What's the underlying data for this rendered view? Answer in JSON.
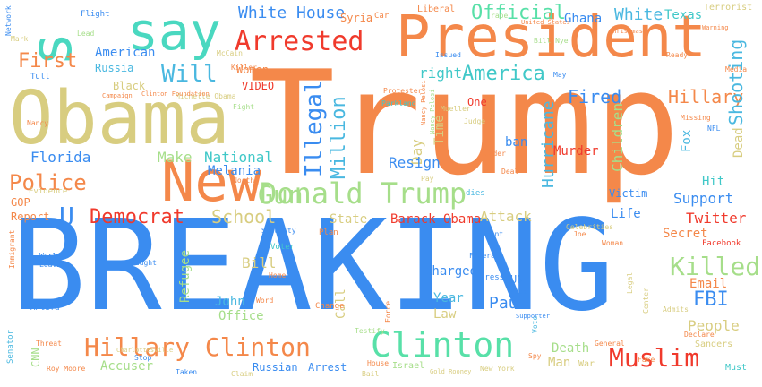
{
  "words": [
    {
      "text": "BREAKING",
      "color": "#3a8cf0"
    },
    {
      "text": "Trump",
      "color": "#f4884a"
    },
    {
      "text": "Obama",
      "color": "#d8cd80"
    },
    {
      "text": "President",
      "color": "#f4884a"
    },
    {
      "text": "say",
      "color": "#4ad8c0"
    },
    {
      "text": "s",
      "color": "#4ad8c0"
    },
    {
      "text": "New",
      "color": "#f4884a"
    },
    {
      "text": "Donald Trump",
      "color": "#a6de8a"
    },
    {
      "text": "Hillary Clinton",
      "color": "#f4884a"
    },
    {
      "text": "Clinton",
      "color": "#58e0a8"
    },
    {
      "text": "Arrested",
      "color": "#f03a2c"
    },
    {
      "text": "Muslim",
      "color": "#f03a2c"
    },
    {
      "text": "White House",
      "color": "#3a8cf0"
    },
    {
      "text": "Official",
      "color": "#58e0a8"
    },
    {
      "text": "Will",
      "color": "#4ab8e0"
    },
    {
      "text": "America",
      "color": "#40c8c8"
    },
    {
      "text": "Fired",
      "color": "#3a8cf0"
    },
    {
      "text": "Hillary",
      "color": "#f4884a"
    },
    {
      "text": "Shooting",
      "color": "#4ab8e0"
    },
    {
      "text": "Killed",
      "color": "#a6de8a"
    },
    {
      "text": "Illegal",
      "color": "#3a8cf0"
    },
    {
      "text": "Million",
      "color": "#4ab8e0"
    },
    {
      "text": "Gun",
      "color": "#a6de8a"
    },
    {
      "text": "School",
      "color": "#d8cd80"
    },
    {
      "text": "Democrat",
      "color": "#f03a2c"
    },
    {
      "text": "Police",
      "color": "#f4884a"
    },
    {
      "text": "First",
      "color": "#f4884a"
    },
    {
      "text": "Florida",
      "color": "#3a8cf0"
    },
    {
      "text": "Make",
      "color": "#a6de8a"
    },
    {
      "text": "National",
      "color": "#40c8c8"
    },
    {
      "text": "Melania",
      "color": "#3a8cf0"
    },
    {
      "text": "Day",
      "color": "#d8cd80"
    },
    {
      "text": "Time",
      "color": "#d8cd80"
    },
    {
      "text": "right",
      "color": "#40c8c8"
    },
    {
      "text": "American",
      "color": "#3a8cf0"
    },
    {
      "text": "Russia",
      "color": "#4ab8e0"
    },
    {
      "text": "Women",
      "color": "#f4884a"
    },
    {
      "text": "Black",
      "color": "#d8cd80"
    },
    {
      "text": "VIDEO",
      "color": "#f03a2c"
    },
    {
      "text": "One",
      "color": "#f03a2c"
    },
    {
      "text": "Hurricane",
      "color": "#4ab8e0"
    },
    {
      "text": "Children",
      "color": "#a6de8a"
    },
    {
      "text": "Resign",
      "color": "#3a8cf0"
    },
    {
      "text": "Murder",
      "color": "#f03a2c"
    },
    {
      "text": "ban",
      "color": "#3a8cf0"
    },
    {
      "text": "Hit",
      "color": "#40c8c8"
    },
    {
      "text": "Support",
      "color": "#3a8cf0"
    },
    {
      "text": "Dead",
      "color": "#d8cd80"
    },
    {
      "text": "Fox",
      "color": "#4ab8e0"
    },
    {
      "text": "Victim",
      "color": "#3a8cf0"
    },
    {
      "text": "Twitter",
      "color": "#f03a2c"
    },
    {
      "text": "Secret",
      "color": "#f4884a"
    },
    {
      "text": "Life",
      "color": "#3a8cf0"
    },
    {
      "text": "Barack Obama",
      "color": "#f03a2c"
    },
    {
      "text": "Attack",
      "color": "#d8cd80"
    },
    {
      "text": "State",
      "color": "#d8cd80"
    },
    {
      "text": "Report",
      "color": "#f4884a"
    },
    {
      "text": "GOP",
      "color": "#f4884a"
    },
    {
      "text": "U",
      "color": "#3a8cf0"
    },
    {
      "text": "Refugee",
      "color": "#a6de8a"
    },
    {
      "text": "Bill",
      "color": "#d8cd80"
    },
    {
      "text": "John",
      "color": "#4ab8e0"
    },
    {
      "text": "Office",
      "color": "#a6de8a"
    },
    {
      "text": "Call",
      "color": "#d8cd80"
    },
    {
      "text": "charged",
      "color": "#3a8cf0"
    },
    {
      "text": "Year",
      "color": "#4ab8e0"
    },
    {
      "text": "Law",
      "color": "#d8cd80"
    },
    {
      "text": "Paul",
      "color": "#3a8cf0"
    },
    {
      "text": "UN",
      "color": "#3a8cf0"
    },
    {
      "text": "FBI",
      "color": "#3a8cf0"
    },
    {
      "text": "Email",
      "color": "#f4884a"
    },
    {
      "text": "People",
      "color": "#d8cd80"
    },
    {
      "text": "Death",
      "color": "#a6de8a"
    },
    {
      "text": "Man",
      "color": "#d8cd80"
    },
    {
      "text": "Accuser",
      "color": "#a6de8a"
    },
    {
      "text": "Russian",
      "color": "#3a8cf0"
    },
    {
      "text": "Arrest",
      "color": "#3a8cf0"
    },
    {
      "text": "White",
      "color": "#4ab8e0"
    },
    {
      "text": "Texas",
      "color": "#40c8c8"
    },
    {
      "text": "Ghana",
      "color": "#3a8cf0"
    },
    {
      "text": "Terrorist",
      "color": "#d8cd80"
    },
    {
      "text": "CNN",
      "color": "#a6de8a"
    },
    {
      "text": "Roy Moore",
      "color": "#f4884a"
    },
    {
      "text": "Israel",
      "color": "#a6de8a"
    },
    {
      "text": "Sanders",
      "color": "#d8cd80"
    },
    {
      "text": "Must",
      "color": "#40c8c8"
    },
    {
      "text": "War",
      "color": "#d8cd80"
    },
    {
      "text": "Syria",
      "color": "#f4884a"
    },
    {
      "text": "Liberal",
      "color": "#f4884a"
    },
    {
      "text": "Evidence",
      "color": "#d8cd80"
    },
    {
      "text": "Plan",
      "color": "#f4884a"
    },
    {
      "text": "Voter",
      "color": "#40c8c8"
    },
    {
      "text": "Flight",
      "color": "#3a8cf0"
    },
    {
      "text": "Michelle Obama",
      "color": "#d8cd80"
    },
    {
      "text": "Clinton Foundation",
      "color": "#f4884a"
    },
    {
      "text": "Parkland",
      "color": "#40c8c8"
    },
    {
      "text": "Celebrities",
      "color": "#d8cd80"
    },
    {
      "text": "Senator",
      "color": "#4ab8e0"
    },
    {
      "text": "Immigrant",
      "color": "#f4884a"
    },
    {
      "text": "Antifa",
      "color": "#3a8cf0"
    },
    {
      "text": "Bill Nye",
      "color": "#a6de8a"
    },
    {
      "text": "Killer",
      "color": "#f4884a"
    },
    {
      "text": "Judge",
      "color": "#d8cd80"
    },
    {
      "text": "Missing",
      "color": "#f4884a"
    },
    {
      "text": "NFL",
      "color": "#3a8cf0"
    },
    {
      "text": "Facebook",
      "color": "#f03a2c"
    },
    {
      "text": "Federal",
      "color": "#3a8cf0"
    },
    {
      "text": "Agent",
      "color": "#3a8cf0"
    },
    {
      "text": "North",
      "color": "#f4884a"
    },
    {
      "text": "Press",
      "color": "#3a8cf0"
    },
    {
      "text": "Mueller",
      "color": "#d8cd80"
    },
    {
      "text": "Nancy Pelosi",
      "color": "#a6de8a"
    },
    {
      "text": "Leader",
      "color": "#f4884a"
    },
    {
      "text": "Network",
      "color": "#3a8cf0"
    },
    {
      "text": "Fight",
      "color": "#a6de8a"
    },
    {
      "text": "McCain",
      "color": "#d8cd80"
    },
    {
      "text": "Campaign",
      "color": "#f4884a"
    },
    {
      "text": "Nancy",
      "color": "#f4884a"
    },
    {
      "text": "Word",
      "color": "#f4884a"
    },
    {
      "text": "Change",
      "color": "#f4884a"
    },
    {
      "text": "Stop",
      "color": "#3a8cf0"
    },
    {
      "text": "Taken",
      "color": "#3a8cf0"
    },
    {
      "text": "Claim",
      "color": "#d8cd80"
    },
    {
      "text": "Bail",
      "color": "#d8cd80"
    },
    {
      "text": "Made",
      "color": "#3a8cf0"
    },
    {
      "text": "Supporter",
      "color": "#3a8cf0"
    },
    {
      "text": "General",
      "color": "#f4884a"
    },
    {
      "text": "Threat",
      "color": "#f4884a"
    },
    {
      "text": "Charlottesville",
      "color": "#d8cd80"
    },
    {
      "text": "Legal",
      "color": "#d8cd80"
    },
    {
      "text": "Center",
      "color": "#d8cd80"
    },
    {
      "text": "Admits",
      "color": "#d8cd80"
    },
    {
      "text": "Declare",
      "color": "#f4884a"
    },
    {
      "text": "Security",
      "color": "#3a8cf0"
    },
    {
      "text": "Pay",
      "color": "#d8cd80"
    },
    {
      "text": "Deal",
      "color": "#f4884a"
    },
    {
      "text": "dies",
      "color": "#4ab8e0"
    },
    {
      "text": "Caught",
      "color": "#3a8cf0"
    },
    {
      "text": "Leaving",
      "color": "#3a8cf0"
    },
    {
      "text": "World",
      "color": "#3a8cf0"
    },
    {
      "text": "Issued",
      "color": "#3a8cf0"
    },
    {
      "text": "rape",
      "color": "#a6de8a"
    },
    {
      "text": "United States",
      "color": "#f4884a"
    },
    {
      "text": "Warning",
      "color": "#f4884a"
    },
    {
      "text": "Christmas",
      "color": "#f4884a"
    },
    {
      "text": "Car",
      "color": "#f4884a"
    },
    {
      "text": "Tull",
      "color": "#3a8cf0"
    },
    {
      "text": "Protester",
      "color": "#f4884a"
    },
    {
      "text": "Nancy Pelosi",
      "color": "#f4884a"
    },
    {
      "text": "Gold Rooney",
      "color": "#d8cd80"
    },
    {
      "text": "New York",
      "color": "#d8cd80"
    },
    {
      "text": "Force",
      "color": "#f4884a"
    },
    {
      "text": "House",
      "color": "#f4884a"
    },
    {
      "text": "Testify",
      "color": "#a6de8a"
    },
    {
      "text": "Lead",
      "color": "#a6de8a"
    },
    {
      "text": "Ready",
      "color": "#f4884a"
    },
    {
      "text": "May",
      "color": "#3a8cf0"
    },
    {
      "text": "Mark",
      "color": "#d8cd80"
    },
    {
      "text": "Vote",
      "color": "#4ab8e0"
    },
    {
      "text": "Media",
      "color": "#f4884a"
    },
    {
      "text": "Joe",
      "color": "#f4884a"
    },
    {
      "text": "Spy",
      "color": "#f4884a"
    },
    {
      "text": "Fake",
      "color": "#f4884a"
    },
    {
      "text": "Home",
      "color": "#f4884a"
    },
    {
      "text": "Woman",
      "color": "#f4884a"
    }
  ]
}
